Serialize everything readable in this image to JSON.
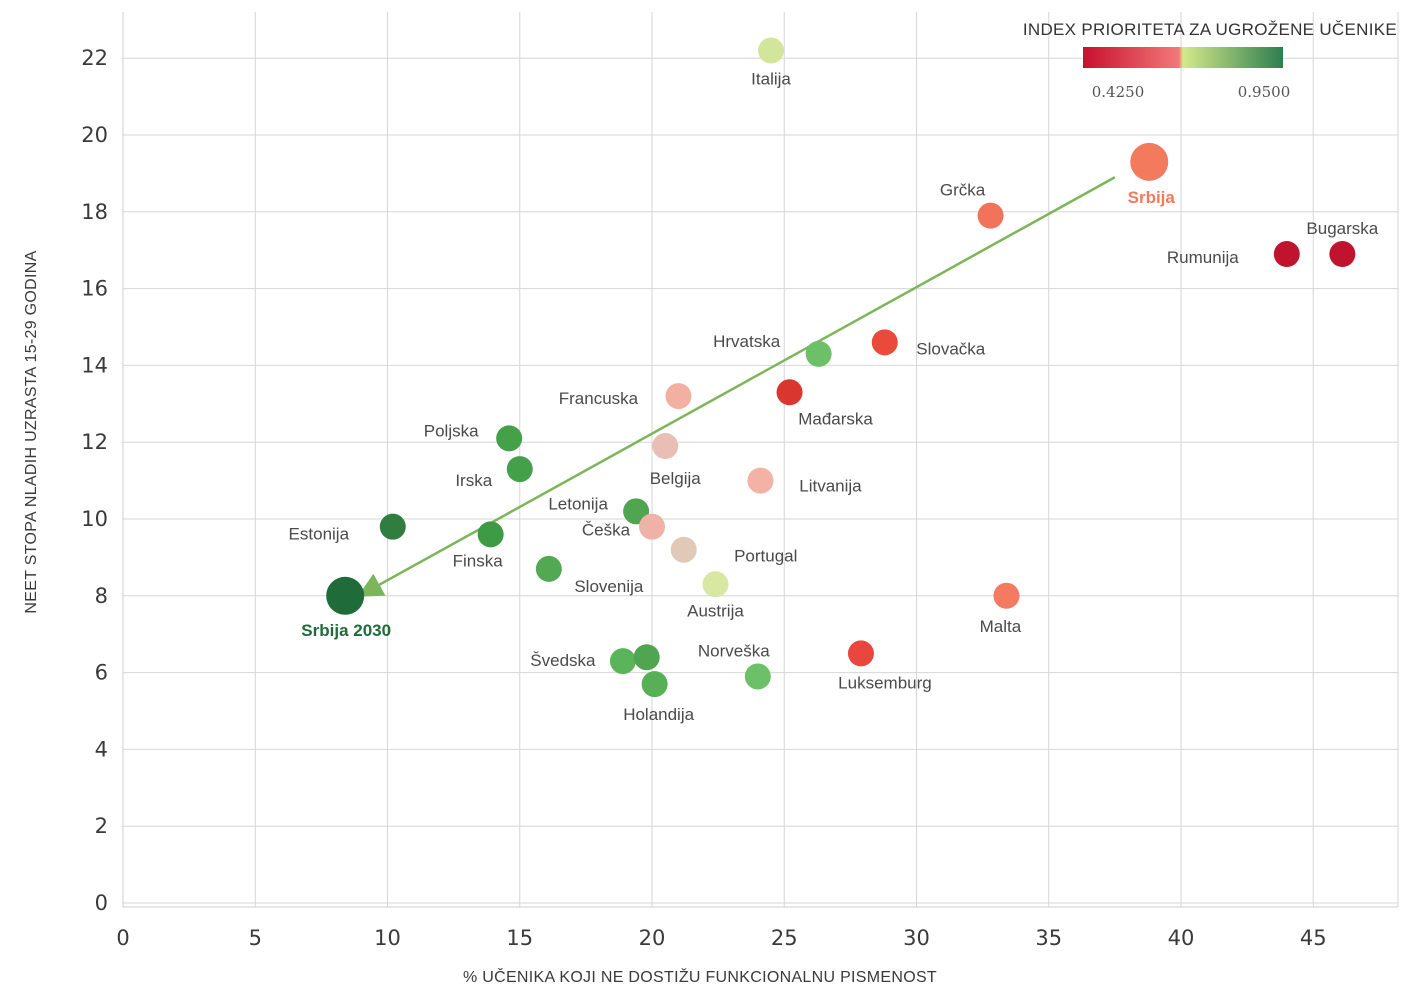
{
  "chart_data": {
    "type": "scatter",
    "xlabel": "% UČENIKA KOJI NE DOSTIŽU FUNKCIONALNU PISMENOST",
    "ylabel": "NEET STOPA NLADIH UZRASTA 15-29 GODINA",
    "xlim": [
      0,
      48
    ],
    "ylim": [
      0,
      23
    ],
    "xticks": [
      "0",
      "5",
      "10",
      "15",
      "20",
      "25",
      "30",
      "35",
      "40",
      "45"
    ],
    "yticks": [
      "0",
      "2",
      "4",
      "6",
      "8",
      "10",
      "12",
      "14",
      "16",
      "18",
      "20",
      "22"
    ],
    "grid": true,
    "legend": {
      "title": "INDEX PRIORITETA ZA UGROŽENE UČENIKE",
      "placement": "top-right",
      "min_label": "0.4250",
      "max_label": "0.9500",
      "colors": [
        "#c8102e",
        "#f2797a",
        "#d4e98a",
        "#2e7d4f"
      ]
    },
    "trend_arrow": {
      "from": [
        37.5,
        18.9
      ],
      "to": [
        9.2,
        8.1
      ],
      "color": "#7cb55a"
    },
    "points": [
      {
        "label": "Italija",
        "x": 24.5,
        "y": 22.2,
        "color": "#d3e59a",
        "size": "m"
      },
      {
        "label": "Srbija",
        "x": 38.8,
        "y": 19.3,
        "color": "#f47a5e",
        "size": "l",
        "highlight": true
      },
      {
        "label": "Grčka",
        "x": 32.8,
        "y": 17.9,
        "color": "#f0735a",
        "size": "m"
      },
      {
        "label": "Bugarska",
        "x": 46.1,
        "y": 16.9,
        "color": "#c0142e",
        "size": "m"
      },
      {
        "label": "Rumunija",
        "x": 44.0,
        "y": 16.9,
        "color": "#c0142e",
        "size": "m"
      },
      {
        "label": "Hrvatska",
        "x": 26.3,
        "y": 14.3,
        "color": "#6cc068",
        "size": "m"
      },
      {
        "label": "Slovačka",
        "x": 28.8,
        "y": 14.6,
        "color": "#ea4a3a",
        "size": "m"
      },
      {
        "label": "Francuska",
        "x": 21.0,
        "y": 13.2,
        "color": "#f2b0a2",
        "size": "m"
      },
      {
        "label": "Mađarska",
        "x": 25.2,
        "y": 13.3,
        "color": "#d9362f",
        "size": "m"
      },
      {
        "label": "Poljska",
        "x": 14.6,
        "y": 12.1,
        "color": "#45a04a",
        "size": "m"
      },
      {
        "label": "Irska",
        "x": 15.0,
        "y": 11.3,
        "color": "#45a04a",
        "size": "m"
      },
      {
        "label": "Belgija",
        "x": 20.5,
        "y": 11.9,
        "color": "#e9beb5",
        "size": "m"
      },
      {
        "label": "Litvanija",
        "x": 24.1,
        "y": 11.0,
        "color": "#f4b1a6",
        "size": "m"
      },
      {
        "label": "Estonija",
        "x": 10.2,
        "y": 9.8,
        "color": "#2f7d3f",
        "size": "m"
      },
      {
        "label": "Letonija",
        "x": 19.4,
        "y": 10.2,
        "color": "#4fa550",
        "size": "m"
      },
      {
        "label": "Češka",
        "x": 20.0,
        "y": 9.8,
        "color": "#efb2a6",
        "size": "m"
      },
      {
        "label": "Finska",
        "x": 13.9,
        "y": 9.6,
        "color": "#3e9a45",
        "size": "m"
      },
      {
        "label": "Portugal",
        "x": 21.2,
        "y": 9.2,
        "color": "#e2c8b8",
        "size": "m"
      },
      {
        "label": "Slovenija",
        "x": 16.1,
        "y": 8.7,
        "color": "#52a853",
        "size": "m"
      },
      {
        "label": "Austrija",
        "x": 22.4,
        "y": 8.3,
        "color": "#d8e8a2",
        "size": "m"
      },
      {
        "label": "Srbija 2030",
        "x": 8.4,
        "y": 8.0,
        "color": "#1f6b3a",
        "size": "l",
        "highlight": true
      },
      {
        "label": "Malta",
        "x": 33.4,
        "y": 8.0,
        "color": "#f47a62",
        "size": "m"
      },
      {
        "label": "Švedska",
        "x": 18.9,
        "y": 6.3,
        "color": "#5bb35a",
        "size": "m"
      },
      {
        "label": "",
        "x": 19.8,
        "y": 6.4,
        "color": "#4fa550",
        "size": "m"
      },
      {
        "label": "Holandija",
        "x": 20.1,
        "y": 5.7,
        "color": "#58b056",
        "size": "m"
      },
      {
        "label": "Norveška",
        "x": 24.0,
        "y": 5.9,
        "color": "#6cc068",
        "size": "m"
      },
      {
        "label": "Luksemburg",
        "x": 27.9,
        "y": 6.5,
        "color": "#e9473d",
        "size": "m"
      }
    ]
  }
}
